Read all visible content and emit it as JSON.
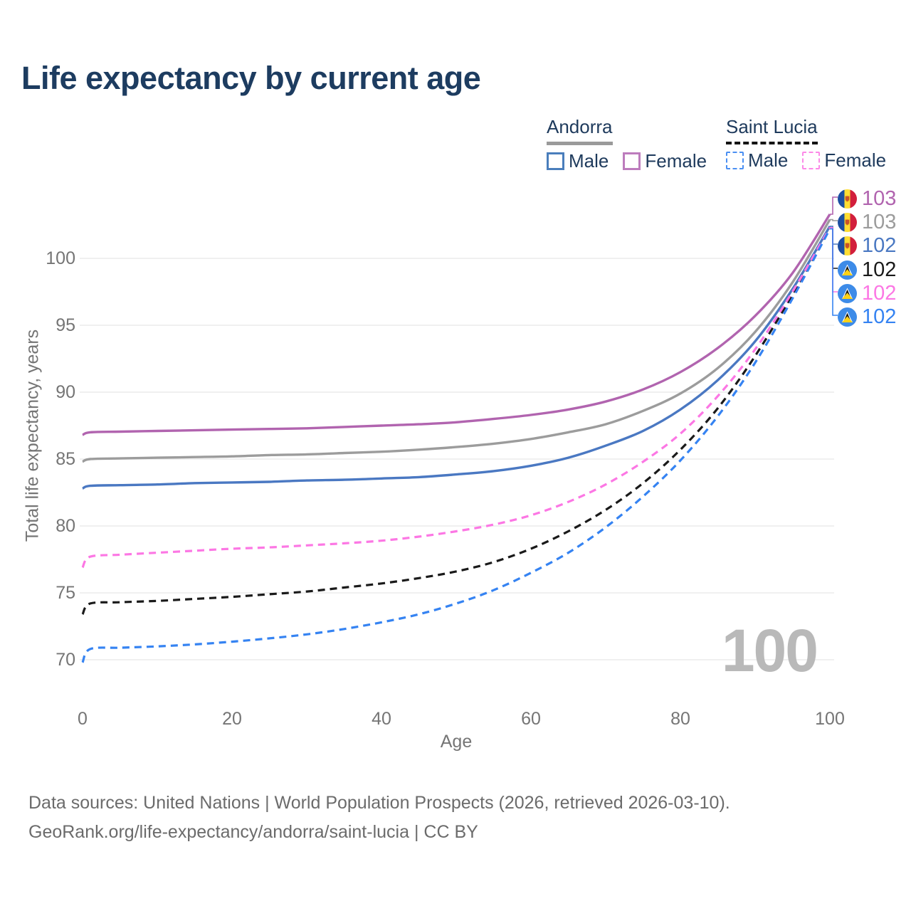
{
  "title": "Life expectancy by current age",
  "watermark": "100",
  "legend": {
    "groups": [
      {
        "country": "Andorra",
        "line_style": "solid",
        "underline_color": "#9a9a9a",
        "items": [
          {
            "label": "Male",
            "color": "#4a7ebc",
            "dashed": false
          },
          {
            "label": "Female",
            "color": "#bd7cbd",
            "dashed": false
          }
        ]
      },
      {
        "country": "Saint Lucia",
        "line_style": "dashed",
        "underline_color": "#141414",
        "items": [
          {
            "label": "Male",
            "color": "#4a8ff2",
            "dashed": true
          },
          {
            "label": "Female",
            "color": "#fc8ae8",
            "dashed": true
          }
        ]
      }
    ]
  },
  "footer": {
    "line1": "Data sources: United Nations | World Population Prospects (2026, retrieved 2026-03-10).",
    "line2": "GeoRank.org/life-expectancy/andorra/saint-lucia | CC BY"
  },
  "chart_data": {
    "type": "line",
    "title": "Life expectancy by current age",
    "xlabel": "Age",
    "ylabel": "Total life expectancy, years",
    "x_ticks": [
      0,
      20,
      40,
      60,
      80,
      100
    ],
    "y_ticks": [
      70,
      75,
      80,
      85,
      90,
      95,
      100
    ],
    "xlim": [
      0,
      100
    ],
    "ylim": [
      68,
      104
    ],
    "grid": "horizontal",
    "legend_position": "top-right",
    "x": [
      0,
      1,
      5,
      10,
      15,
      20,
      25,
      30,
      35,
      40,
      45,
      50,
      55,
      60,
      65,
      70,
      75,
      80,
      85,
      90,
      95,
      100
    ],
    "series": [
      {
        "id": "andorra-female",
        "name": "Andorra Female",
        "country": "Andorra",
        "group": "Female",
        "color": "#b164af",
        "dashed": false,
        "flag": "andorra",
        "end_label": "103",
        "values": [
          86.8,
          87.0,
          87.05,
          87.1,
          87.15,
          87.2,
          87.25,
          87.3,
          87.4,
          87.5,
          87.6,
          87.75,
          88.0,
          88.3,
          88.7,
          89.3,
          90.2,
          91.5,
          93.3,
          95.7,
          98.9,
          103.3
        ]
      },
      {
        "id": "andorra-both",
        "name": "Andorra",
        "country": "Andorra",
        "group": "Both sexes",
        "color": "#9c9c9c",
        "dashed": false,
        "flag": "andorra",
        "end_label": "103",
        "values": [
          84.8,
          85.0,
          85.05,
          85.1,
          85.15,
          85.2,
          85.3,
          85.35,
          85.45,
          85.55,
          85.7,
          85.9,
          86.15,
          86.5,
          87.0,
          87.6,
          88.6,
          89.9,
          91.8,
          94.5,
          98.2,
          102.9
        ]
      },
      {
        "id": "andorra-male",
        "name": "Andorra Male",
        "country": "Andorra",
        "group": "Male",
        "color": "#4a78c2",
        "dashed": false,
        "flag": "andorra",
        "end_label": "102",
        "values": [
          82.8,
          83.0,
          83.05,
          83.1,
          83.2,
          83.25,
          83.3,
          83.4,
          83.45,
          83.55,
          83.65,
          83.85,
          84.1,
          84.5,
          85.1,
          86.0,
          87.1,
          88.7,
          90.9,
          93.8,
          97.7,
          102.4
        ]
      },
      {
        "id": "saint-lucia-both",
        "name": "Saint Lucia",
        "country": "Saint Lucia",
        "group": "Both sexes",
        "color": "#1a1a1a",
        "dashed": true,
        "flag": "saint-lucia",
        "end_label": "102",
        "values": [
          73.4,
          74.2,
          74.3,
          74.4,
          74.55,
          74.7,
          74.9,
          75.1,
          75.4,
          75.7,
          76.1,
          76.6,
          77.3,
          78.3,
          79.6,
          81.2,
          83.2,
          85.7,
          88.8,
          92.7,
          97.3,
          102.3
        ]
      },
      {
        "id": "saint-lucia-female",
        "name": "Saint Lucia Female",
        "country": "Saint Lucia",
        "group": "Female",
        "color": "#fc77e4",
        "dashed": true,
        "flag": "saint-lucia",
        "end_label": "102",
        "values": [
          76.9,
          77.7,
          77.85,
          78.0,
          78.15,
          78.3,
          78.4,
          78.55,
          78.7,
          78.9,
          79.2,
          79.6,
          80.1,
          80.8,
          81.8,
          83.1,
          84.8,
          86.9,
          89.7,
          93.2,
          97.5,
          102.3
        ]
      },
      {
        "id": "saint-lucia-male",
        "name": "Saint Lucia Male",
        "country": "Saint Lucia",
        "group": "Male",
        "color": "#3583f2",
        "dashed": true,
        "flag": "saint-lucia",
        "end_label": "102",
        "values": [
          69.8,
          70.8,
          70.9,
          71.0,
          71.15,
          71.35,
          71.6,
          71.9,
          72.3,
          72.8,
          73.4,
          74.2,
          75.2,
          76.5,
          78.0,
          79.9,
          82.2,
          84.9,
          88.2,
          92.2,
          97.0,
          102.2
        ]
      }
    ]
  }
}
